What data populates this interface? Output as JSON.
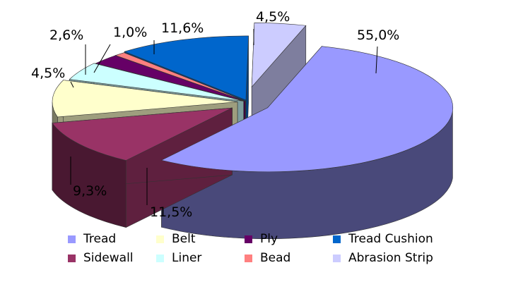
{
  "chart_data": {
    "type": "pie",
    "title": "",
    "categories": [
      "Tread",
      "Sidewall",
      "Belt",
      "Liner",
      "Ply",
      "Bead",
      "Tread Cushion",
      "Abrasion Strip"
    ],
    "values": [
      55.0,
      11.5,
      9.3,
      4.5,
      2.6,
      1.0,
      11.6,
      4.5
    ],
    "labels": [
      "55,0%",
      "11,5%",
      "9,3%",
      "4,5%",
      "2,6%",
      "1,0%",
      "11,6%",
      "4,5%"
    ],
    "colors": [
      "#9999FF",
      "#993366",
      "#FFFFCC",
      "#CCFFFF",
      "#660066",
      "#FF8080",
      "#0066CC",
      "#CCCCFF"
    ],
    "legend_position": "bottom",
    "style": "3d-exploded"
  },
  "legend": {
    "items": [
      {
        "label": "Tread",
        "color": "#9999FF"
      },
      {
        "label": "Belt",
        "color": "#FFFFCC"
      },
      {
        "label": "Ply",
        "color": "#660066"
      },
      {
        "label": "Tread Cushion",
        "color": "#0066CC"
      },
      {
        "label": "Sidewall",
        "color": "#993366"
      },
      {
        "label": "Liner",
        "color": "#CCFFFF"
      },
      {
        "label": "Bead",
        "color": "#FF8080"
      },
      {
        "label": "Abrasion Strip",
        "color": "#CCCCFF"
      }
    ]
  }
}
